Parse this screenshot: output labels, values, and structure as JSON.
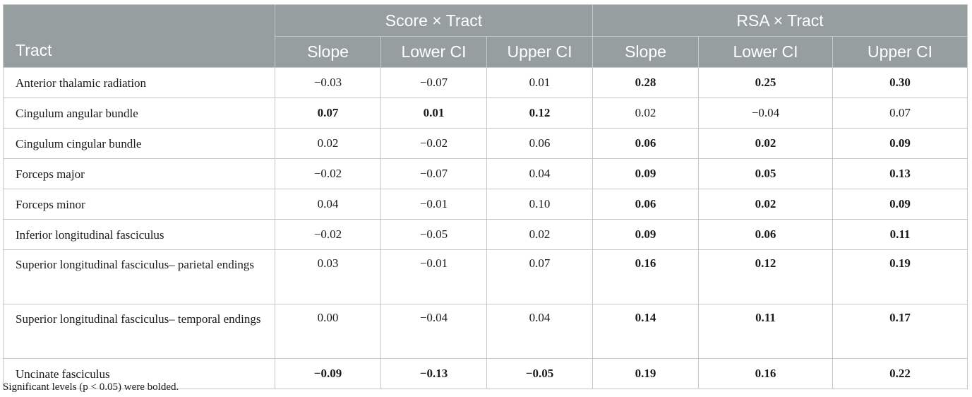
{
  "table": {
    "group_headers": [
      "Score × Tract",
      "RSA × Tract"
    ],
    "tract_header": "Tract",
    "sub_headers": [
      "Slope",
      "Lower CI",
      "Upper CI",
      "Slope",
      "Lower CI",
      "Upper CI"
    ],
    "rows": [
      {
        "tract": "Anterior thalamic radiation",
        "values": [
          "−0.03",
          "−0.07",
          "0.01",
          "0.28",
          "0.25",
          "0.30"
        ],
        "bold": [
          false,
          false,
          false,
          true,
          true,
          true
        ]
      },
      {
        "tract": "Cingulum angular bundle",
        "values": [
          "0.07",
          "0.01",
          "0.12",
          "0.02",
          "−0.04",
          "0.07"
        ],
        "bold": [
          true,
          true,
          true,
          false,
          false,
          false
        ]
      },
      {
        "tract": "Cingulum cingular bundle",
        "values": [
          "0.02",
          "−0.02",
          "0.06",
          "0.06",
          "0.02",
          "0.09"
        ],
        "bold": [
          false,
          false,
          false,
          true,
          true,
          true
        ]
      },
      {
        "tract": "Forceps major",
        "values": [
          "−0.02",
          "−0.07",
          "0.04",
          "0.09",
          "0.05",
          "0.13"
        ],
        "bold": [
          false,
          false,
          false,
          true,
          true,
          true
        ]
      },
      {
        "tract": "Forceps minor",
        "values": [
          "0.04",
          "−0.01",
          "0.10",
          "0.06",
          "0.02",
          "0.09"
        ],
        "bold": [
          false,
          false,
          false,
          true,
          true,
          true
        ]
      },
      {
        "tract": "Inferior longitudinal fasciculus",
        "values": [
          "−0.02",
          "−0.05",
          "0.02",
          "0.09",
          "0.06",
          "0.11"
        ],
        "bold": [
          false,
          false,
          false,
          true,
          true,
          true
        ]
      },
      {
        "tract": "Superior longitudinal fasciculus– parietal endings",
        "values": [
          "0.03",
          "−0.01",
          "0.07",
          "0.16",
          "0.12",
          "0.19"
        ],
        "bold": [
          false,
          false,
          false,
          true,
          true,
          true
        ]
      },
      {
        "tract": "Superior longitudinal fasciculus– temporal endings",
        "values": [
          "0.00",
          "−0.04",
          "0.04",
          "0.14",
          "0.11",
          "0.17"
        ],
        "bold": [
          false,
          false,
          false,
          true,
          true,
          true
        ]
      },
      {
        "tract": "Uncinate fasciculus",
        "values": [
          "−0.09",
          "−0.13",
          "−0.05",
          "0.19",
          "0.16",
          "0.22"
        ],
        "bold": [
          true,
          true,
          true,
          true,
          true,
          true
        ]
      }
    ]
  },
  "footnote": "Significant levels (p < 0.05) were bolded."
}
